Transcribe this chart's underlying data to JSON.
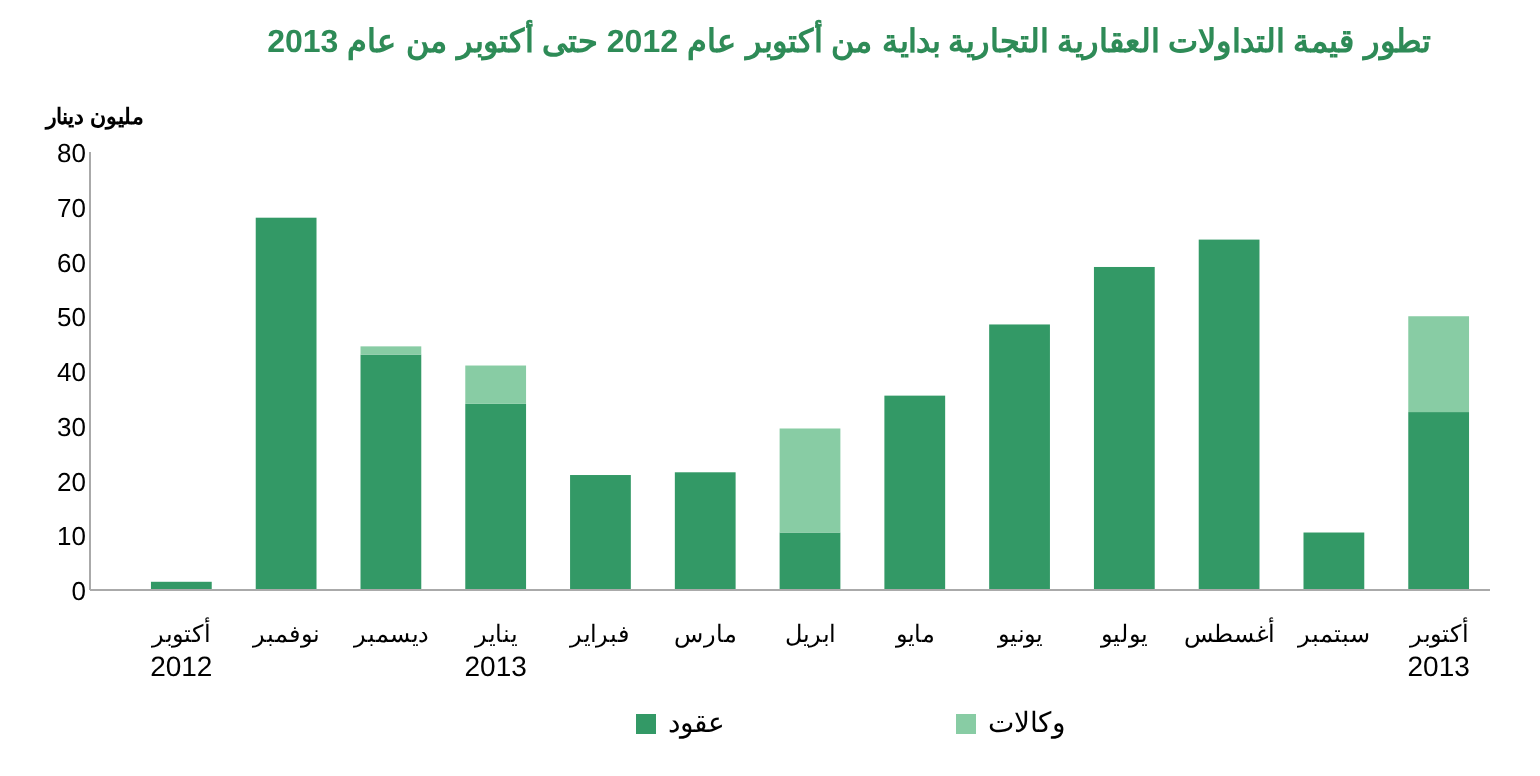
{
  "chart_data": {
    "type": "bar",
    "title": "تطور قيمة التداولات العقارية التجارية بداية من أكتوبر عام 2012  حتى أكتوبر من عام 2013",
    "ylabel": "مليون دينار",
    "categories": [
      "أكتوبر\n2012",
      "نوفمبر",
      "ديسمبر",
      "يناير\n2013",
      "فبراير",
      "مارس",
      "ابريل",
      "مايو",
      "يونيو",
      "يوليو",
      "أغسطس",
      "سبتمبر",
      "أكتوبر\n2013"
    ],
    "series": [
      {
        "name": "عقود",
        "color": "#339966",
        "values": [
          1.5,
          68,
          43,
          34,
          21,
          21.5,
          10.5,
          35.5,
          48.5,
          59,
          64,
          10.5,
          32.5
        ]
      },
      {
        "name": "وكالات",
        "color": "#88cca4",
        "values": [
          null,
          null,
          1.5,
          7,
          null,
          null,
          19,
          null,
          null,
          null,
          null,
          null,
          17.5
        ]
      }
    ],
    "stacked": true,
    "ylim": [
      0,
      80
    ],
    "yticks": [
      0,
      10,
      20,
      30,
      40,
      50,
      60,
      70,
      80
    ],
    "legend": "bottom"
  }
}
